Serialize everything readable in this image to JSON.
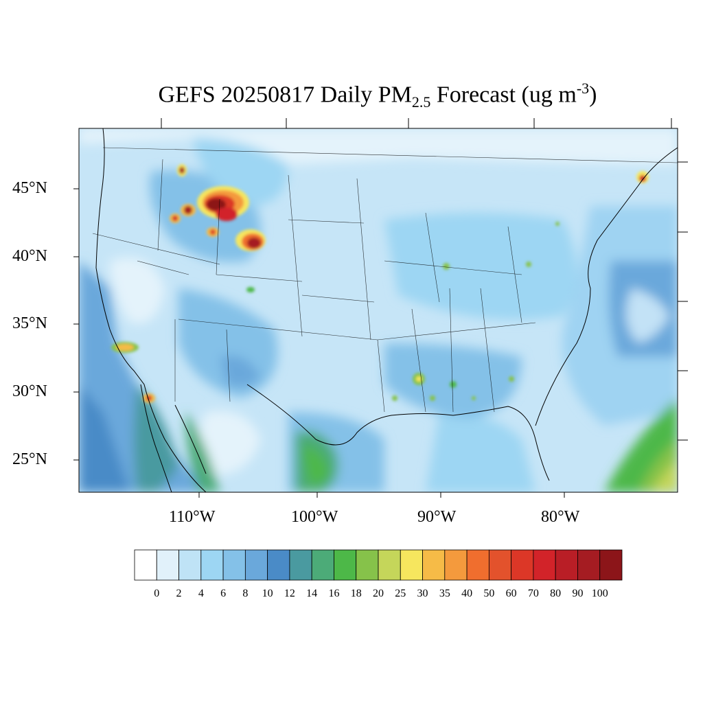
{
  "title": {
    "prefix": "GEFS 20250817 Daily PM",
    "subscript": "2.5",
    "middle": " Forecast (ug m",
    "superscript": "-3",
    "suffix": ")"
  },
  "map": {
    "region": "Contiguous United States",
    "projection": "Lambert conformal",
    "latitude_labels": [
      "45°N",
      "40°N",
      "35°N",
      "30°N",
      "25°N"
    ],
    "longitude_labels": [
      "110°W",
      "100°W",
      "90°W",
      "80°W"
    ],
    "hotspots": [
      {
        "name": "Northern Idaho / Montana border",
        "level": 100
      },
      {
        "name": "Central Idaho",
        "level": 80
      },
      {
        "name": "Western Montana",
        "level": 100
      },
      {
        "name": "Southwestern Montana",
        "level": 90
      },
      {
        "name": "Northern Wyoming (Bighorn)",
        "level": 100
      },
      {
        "name": "Southern California / Baja border",
        "level": 35
      },
      {
        "name": "Baja California",
        "level": 80
      },
      {
        "name": "Gulf of Mexico coast (Louisiana)",
        "level": 30
      },
      {
        "name": "Nova Scotia",
        "level": 80
      },
      {
        "name": "South Texas / Mexico",
        "level": 18
      },
      {
        "name": "Atlantic southeast of Florida",
        "level": 25
      }
    ]
  },
  "colorbar": {
    "labels": [
      "0",
      "2",
      "4",
      "6",
      "8",
      "10",
      "12",
      "14",
      "16",
      "18",
      "20",
      "25",
      "30",
      "35",
      "40",
      "50",
      "60",
      "70",
      "80",
      "90",
      "100"
    ],
    "colors": [
      "#ffffff",
      "#e1f1fa",
      "#bfe3f6",
      "#9dd6f3",
      "#84c1e8",
      "#6aa8db",
      "#4a8bc7",
      "#4a9aa0",
      "#4cab78",
      "#4db848",
      "#86c24a",
      "#c5d65a",
      "#f6e65e",
      "#f6bb47",
      "#f49a3d",
      "#f06e2e",
      "#e3522c",
      "#dc3727",
      "#d22329",
      "#b91e26",
      "#a51c22",
      "#8c1519"
    ]
  }
}
